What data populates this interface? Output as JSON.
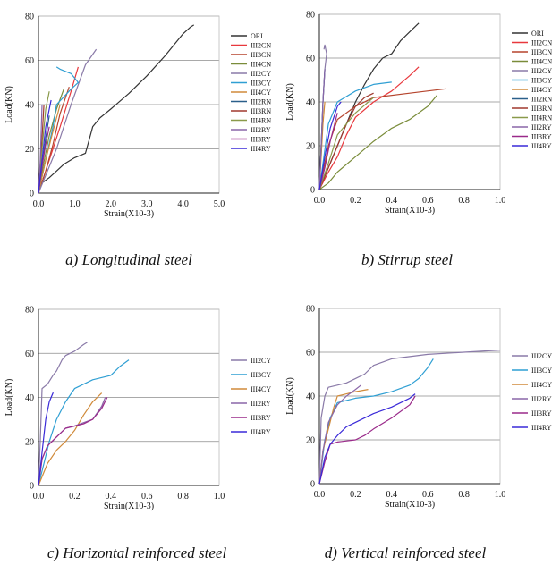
{
  "figure": {
    "colors": {
      "ORI": "#333333",
      "III2CN": "#e8383d",
      "III3CN": "#b5442d",
      "III4CN": "#7a8c3a",
      "III2CY": "#8a7aa8",
      "III3CY": "#2f9fd3",
      "III4CY": "#d08a3a",
      "III2RN": "#2a5f8a",
      "III3RN": "#a0382e",
      "III4RN": "#8a9a4a",
      "III2RY": "#8a66a8",
      "III3RY": "#9a2a8a",
      "III4RY": "#3a2ad8"
    }
  },
  "chart_data": [
    {
      "type": "line",
      "caption": "a) Longitudinal steel",
      "xlabel": "Strain(X10-3)",
      "ylabel": "Load(KN)",
      "xlim": [
        0,
        5
      ],
      "ylim": [
        0,
        80
      ],
      "xticks": [
        "0.0",
        "1.0",
        "2.0",
        "3.0",
        "4.0",
        "5.0"
      ],
      "yticks": [
        "0",
        "20",
        "40",
        "60",
        "80"
      ],
      "grid": "horizontal",
      "legend_position": "right",
      "legend": [
        "ORI",
        "III2CN",
        "III3CN",
        "III4CN",
        "III2CY",
        "III3CY",
        "III4CY",
        "III2RN",
        "III3RN",
        "III4RN",
        "III2RY",
        "III3RY",
        "III4RY"
      ],
      "series": [
        {
          "name": "ORI",
          "x": [
            0,
            0.05,
            0.3,
            0.5,
            0.7,
            1.0,
            1.3,
            1.4,
            1.5,
            1.7,
            2.0,
            2.5,
            3.0,
            3.5,
            4.0,
            4.2,
            4.3
          ],
          "y": [
            0,
            4,
            7,
            10,
            13,
            16,
            18,
            24,
            30,
            34,
            38,
            45,
            53,
            62,
            72,
            75,
            76
          ]
        },
        {
          "name": "III2CN",
          "x": [
            0,
            0.3,
            0.6,
            0.9,
            1.1
          ],
          "y": [
            0,
            15,
            30,
            46,
            57
          ]
        },
        {
          "name": "III3CN",
          "x": [
            0,
            0.2,
            0.4,
            0.6,
            0.85
          ],
          "y": [
            0,
            10,
            22,
            36,
            48
          ]
        },
        {
          "name": "III4CN",
          "x": [
            0,
            0.15,
            0.3,
            0.5,
            0.7
          ],
          "y": [
            0,
            14,
            26,
            38,
            47
          ]
        },
        {
          "name": "III2CY",
          "x": [
            0,
            0.5,
            0.9,
            1.3,
            1.6
          ],
          "y": [
            0,
            20,
            40,
            58,
            65
          ]
        },
        {
          "name": "III3CY",
          "x": [
            0,
            0.2,
            0.4,
            0.5,
            0.9,
            1.1,
            0.9,
            0.6,
            0.5
          ],
          "y": [
            0,
            15,
            30,
            40,
            47,
            50,
            54,
            56,
            57
          ]
        },
        {
          "name": "III4CY",
          "x": [
            0,
            0.2,
            0.4,
            0.6
          ],
          "y": [
            0,
            15,
            28,
            40
          ]
        },
        {
          "name": "III2RN",
          "x": [
            0,
            0.1,
            0.2,
            0.3
          ],
          "y": [
            0,
            12,
            25,
            35
          ]
        },
        {
          "name": "III3RN",
          "x": [
            0,
            0.05,
            0.1,
            0.15
          ],
          "y": [
            0,
            12,
            25,
            40
          ]
        },
        {
          "name": "III4RN",
          "x": [
            0,
            0.1,
            0.2,
            0.3
          ],
          "y": [
            0,
            20,
            38,
            46
          ]
        },
        {
          "name": "III2RY",
          "x": [
            0,
            0.05,
            0.08,
            0.1
          ],
          "y": [
            0,
            15,
            30,
            40
          ]
        },
        {
          "name": "III3RY",
          "x": [
            0,
            0.1,
            0.2,
            0.3
          ],
          "y": [
            0,
            12,
            22,
            30
          ]
        },
        {
          "name": "III4RY",
          "x": [
            0,
            0.1,
            0.2,
            0.35
          ],
          "y": [
            0,
            15,
            30,
            42
          ]
        }
      ]
    },
    {
      "type": "line",
      "caption": "b) Stirrup steel",
      "xlabel": "Strain(X10-3)",
      "ylabel": "Load(KN)",
      "xlim": [
        0,
        1
      ],
      "ylim": [
        0,
        80
      ],
      "xticks": [
        "0.0",
        "0.2",
        "0.4",
        "0.6",
        "0.8",
        "1.0"
      ],
      "yticks": [
        "0",
        "20",
        "40",
        "60",
        "80"
      ],
      "grid": "horizontal",
      "legend_position": "right",
      "legend": [
        "ORI",
        "III2CN",
        "III3CN",
        "III4CN",
        "III2CY",
        "III3CY",
        "III4CY",
        "III2RN",
        "III3RN",
        "III4RN",
        "III2RY",
        "III3RY",
        "III4RY"
      ],
      "series": [
        {
          "name": "ORI",
          "x": [
            0,
            0.05,
            0.1,
            0.15,
            0.2,
            0.25,
            0.3,
            0.35,
            0.4,
            0.45,
            0.5,
            0.55
          ],
          "y": [
            0,
            10,
            20,
            30,
            40,
            48,
            55,
            60,
            62,
            68,
            72,
            76
          ]
        },
        {
          "name": "III2CN",
          "x": [
            0,
            0.05,
            0.1,
            0.15,
            0.2,
            0.3,
            0.4,
            0.5,
            0.55
          ],
          "y": [
            0,
            8,
            15,
            25,
            33,
            40,
            45,
            52,
            56
          ]
        },
        {
          "name": "III3CN",
          "x": [
            0,
            0.05,
            0.1,
            0.2,
            0.3,
            0.5,
            0.7
          ],
          "y": [
            0,
            20,
            32,
            38,
            42,
            44,
            46
          ]
        },
        {
          "name": "III4CN",
          "x": [
            0,
            0.05,
            0.1,
            0.2,
            0.3,
            0.4,
            0.5,
            0.6,
            0.65
          ],
          "y": [
            0,
            3,
            8,
            15,
            22,
            28,
            32,
            38,
            43
          ]
        },
        {
          "name": "III2CY",
          "x": [
            0,
            0.01,
            0.02,
            0.03,
            0.04,
            0.035,
            0.03,
            0.025
          ],
          "y": [
            0,
            20,
            40,
            55,
            62,
            64,
            66,
            64
          ]
        },
        {
          "name": "III3CY",
          "x": [
            0,
            0.05,
            0.1,
            0.2,
            0.3,
            0.4
          ],
          "y": [
            0,
            30,
            40,
            45,
            48,
            49
          ]
        },
        {
          "name": "III4CY",
          "x": [
            0,
            0.01,
            0.02,
            0.03
          ],
          "y": [
            0,
            15,
            30,
            40
          ]
        },
        {
          "name": "III2RN",
          "x": [
            0,
            0.01,
            0.02,
            0.03
          ],
          "y": [
            0,
            20,
            40,
            55
          ]
        },
        {
          "name": "III3RN",
          "x": [
            0,
            0.05,
            0.1,
            0.15,
            0.2,
            0.25,
            0.3
          ],
          "y": [
            0,
            10,
            20,
            30,
            38,
            42,
            44
          ]
        },
        {
          "name": "III4RN",
          "x": [
            0,
            0.05,
            0.1,
            0.2,
            0.3
          ],
          "y": [
            0,
            12,
            25,
            35,
            42
          ]
        },
        {
          "name": "III2RY",
          "x": [
            0,
            0.01,
            0.02,
            0.03
          ],
          "y": [
            0,
            20,
            40,
            55
          ]
        },
        {
          "name": "III3RY",
          "x": [
            0,
            0.03,
            0.06,
            0.1
          ],
          "y": [
            0,
            10,
            22,
            35
          ]
        },
        {
          "name": "III4RY",
          "x": [
            0,
            0.03,
            0.06,
            0.1,
            0.12
          ],
          "y": [
            0,
            15,
            28,
            38,
            40
          ]
        }
      ]
    },
    {
      "type": "line",
      "caption": "c) Horizontal reinforced steel",
      "xlabel": "Strain(X10-3)",
      "ylabel": "Load(KN)",
      "xlim": [
        0,
        1
      ],
      "ylim": [
        0,
        80
      ],
      "xticks": [
        "0.0",
        "0.2",
        "0.4",
        "0.6",
        "0.8",
        "1.0"
      ],
      "yticks": [
        "0",
        "20",
        "40",
        "60",
        "80"
      ],
      "grid": "horizontal",
      "legend_position": "right",
      "legend": [
        "III2CY",
        "III3CY",
        "III4CY",
        "III2RY",
        "III3RY",
        "III4RY"
      ],
      "series": [
        {
          "name": "III2CY",
          "x": [
            0,
            0.01,
            0.02,
            0.05,
            0.08,
            0.1,
            0.13,
            0.15,
            0.2,
            0.25,
            0.27
          ],
          "y": [
            0,
            20,
            44,
            46,
            50,
            52,
            57,
            59,
            61,
            64,
            65
          ]
        },
        {
          "name": "III3CY",
          "x": [
            0,
            0.03,
            0.06,
            0.1,
            0.15,
            0.2,
            0.3,
            0.4,
            0.45,
            0.5
          ],
          "y": [
            0,
            10,
            20,
            30,
            38,
            44,
            48,
            50,
            54,
            57
          ]
        },
        {
          "name": "III4CY",
          "x": [
            0,
            0.05,
            0.1,
            0.15,
            0.2,
            0.25,
            0.3,
            0.35
          ],
          "y": [
            0,
            10,
            16,
            20,
            25,
            32,
            38,
            42
          ]
        },
        {
          "name": "III2RY",
          "x": [
            0,
            0.02,
            0.05,
            0.1,
            0.15,
            0.2,
            0.3,
            0.35,
            0.37
          ],
          "y": [
            0,
            12,
            18,
            22,
            26,
            27,
            30,
            36,
            40
          ]
        },
        {
          "name": "III3RY",
          "x": [
            0,
            0.02,
            0.05,
            0.1,
            0.15,
            0.2,
            0.25,
            0.3,
            0.35,
            0.38
          ],
          "y": [
            0,
            12,
            18,
            22,
            26,
            27,
            28,
            30,
            35,
            40
          ]
        },
        {
          "name": "III4RY",
          "x": [
            0,
            0.02,
            0.04,
            0.06,
            0.08,
            0.07
          ],
          "y": [
            0,
            15,
            30,
            38,
            42,
            40
          ]
        }
      ]
    },
    {
      "type": "line",
      "caption": "d) Vertical reinforced steel",
      "xlabel": "Strain(X10-3)",
      "ylabel": "Load(KN)",
      "xlim": [
        0,
        1
      ],
      "ylim": [
        0,
        80
      ],
      "xticks": [
        "0.0",
        "0.2",
        "0.4",
        "0.6",
        "0.8",
        "1.0"
      ],
      "yticks": [
        "0",
        "20",
        "40",
        "60",
        "80"
      ],
      "grid": "horizontal",
      "legend_position": "right",
      "legend": [
        "III2CY",
        "III3CY",
        "III4CY",
        "III2RY",
        "III3RY",
        "III4RY"
      ],
      "series": [
        {
          "name": "III2CY",
          "x": [
            0,
            0.01,
            0.03,
            0.05,
            0.1,
            0.15,
            0.2,
            0.25,
            0.3,
            0.4,
            0.5,
            0.6,
            0.8,
            1.0
          ],
          "y": [
            0,
            30,
            40,
            44,
            45,
            46,
            48,
            50,
            54,
            57,
            58,
            59,
            60,
            61
          ]
        },
        {
          "name": "III3CY",
          "x": [
            0,
            0.03,
            0.06,
            0.1,
            0.2,
            0.3,
            0.4,
            0.5,
            0.55,
            0.6,
            0.63
          ],
          "y": [
            0,
            20,
            30,
            37,
            39,
            40,
            42,
            45,
            48,
            53,
            57
          ]
        },
        {
          "name": "III4CY",
          "x": [
            0,
            0.02,
            0.05,
            0.08,
            0.1,
            0.15,
            0.2,
            0.27
          ],
          "y": [
            0,
            15,
            25,
            35,
            40,
            41,
            42,
            43
          ]
        },
        {
          "name": "III2RY",
          "x": [
            0,
            0.02,
            0.05,
            0.1,
            0.15,
            0.2,
            0.23
          ],
          "y": [
            0,
            15,
            28,
            36,
            40,
            43,
            45
          ]
        },
        {
          "name": "III3RY",
          "x": [
            0,
            0.03,
            0.06,
            0.1,
            0.2,
            0.25,
            0.3,
            0.4,
            0.5,
            0.53
          ],
          "y": [
            0,
            10,
            18,
            19,
            20,
            22,
            25,
            30,
            36,
            40
          ]
        },
        {
          "name": "III4RY",
          "x": [
            0,
            0.03,
            0.06,
            0.1,
            0.15,
            0.2,
            0.3,
            0.4,
            0.5,
            0.53
          ],
          "y": [
            0,
            12,
            18,
            22,
            26,
            28,
            32,
            35,
            39,
            41
          ]
        }
      ]
    }
  ]
}
